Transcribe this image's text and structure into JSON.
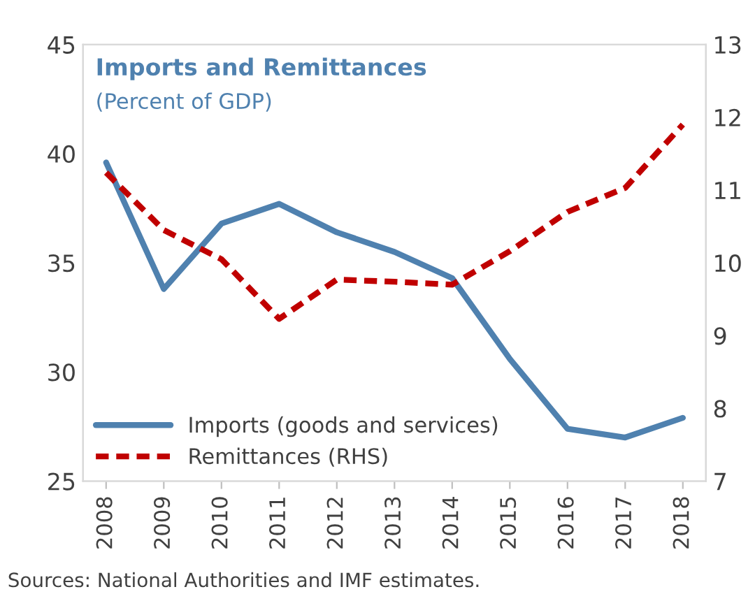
{
  "chart_data": {
    "type": "line",
    "title": "Imports and Remittances",
    "subtitle": "(Percent of GDP)",
    "categories": [
      "2008",
      "2009",
      "2010",
      "2011",
      "2012",
      "2013",
      "2014",
      "2015",
      "2016",
      "2017",
      "2018"
    ],
    "series": [
      {
        "name": "Imports (goods and services)",
        "color": "#4f81af",
        "line_style": "solid",
        "values": [
          39.6,
          33.8,
          36.8,
          37.7,
          36.4,
          35.5,
          34.3,
          30.6,
          27.4,
          27.0,
          27.9
        ]
      },
      {
        "name": "Remittances (RHS)",
        "color": "#c00000",
        "line_style": "dashed",
        "axis": "y2",
        "values": [
          11.24,
          10.45,
          10.05,
          9.23,
          9.77,
          9.74,
          9.7,
          10.16,
          10.7,
          11.03,
          11.9
        ]
      }
    ],
    "ylim": [
      25,
      45
    ],
    "yticks": [
      25,
      30,
      35,
      40,
      45
    ],
    "y2lim": [
      7,
      13
    ],
    "y2ticks": [
      7,
      8,
      9,
      10,
      11,
      12,
      13
    ],
    "legend": "bottom left",
    "grid": false,
    "annotations": [
      "Sources: National Authorities and IMF estimates."
    ]
  }
}
